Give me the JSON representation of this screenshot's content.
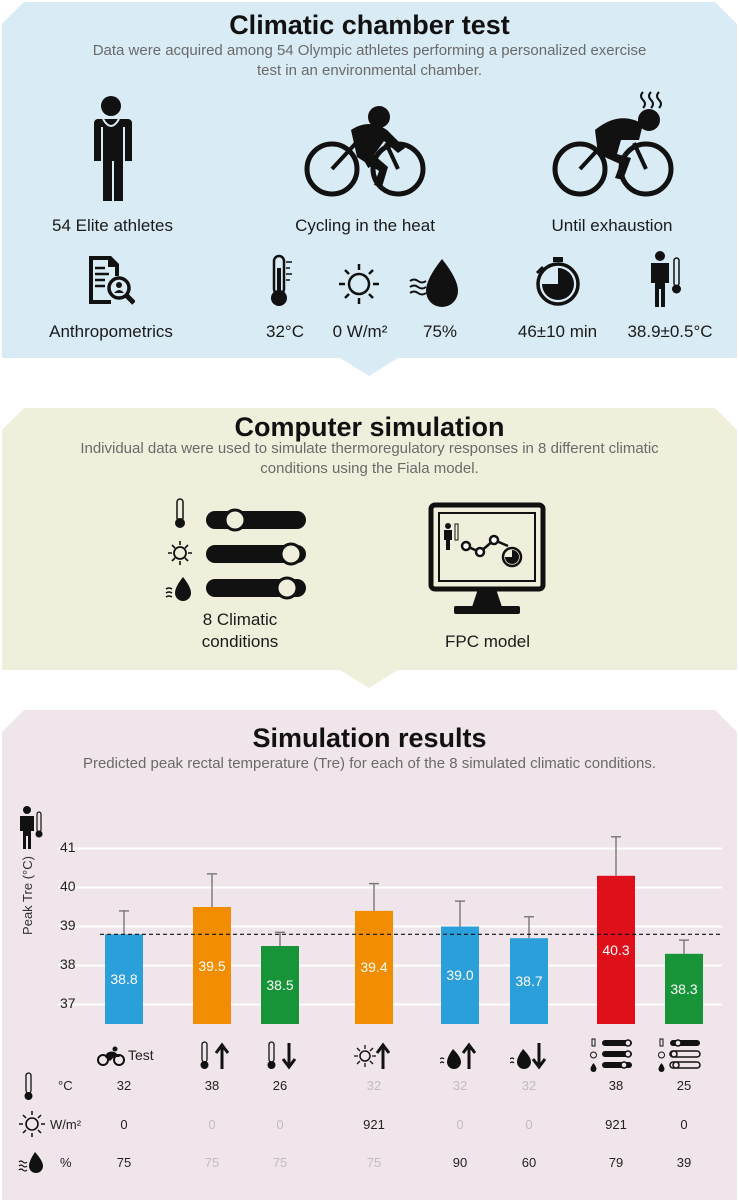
{
  "panel1": {
    "title": "Climatic chamber test",
    "subtitle": "Data were acquired among 54 Olympic athletes performing a personalized exercise test in an environmental chamber.",
    "items": [
      {
        "label": "54 Elite athletes",
        "icon": "athlete-icon"
      },
      {
        "label": "Cycling in the heat",
        "icon": "cyclist-icon"
      },
      {
        "label": "Until exhaustion",
        "icon": "exhausted-cyclist-icon"
      }
    ],
    "anthropometrics": "Anthropometrics",
    "conditions": {
      "temperature": "32°C",
      "radiation": "0 W/m²",
      "humidity": "75%",
      "duration": "46±10 min",
      "core_temp": "38.9±0.5°C"
    }
  },
  "panel2": {
    "title": "Computer simulation",
    "subtitle": "Individual data were used to simulate thermoregulatory responses in 8 different climatic conditions using the Fiala model.",
    "left_label_1": "8 Climatic",
    "left_label_2": "conditions",
    "right_label": "FPC model"
  },
  "panel3": {
    "title": "Simulation results",
    "subtitle": "Predicted peak rectal temperature (Tre) for each of the 8 simulated climatic conditions.",
    "test_label": "Test",
    "row_units": {
      "temperature": "°C",
      "radiation": "W/m²",
      "humidity": "%"
    }
  },
  "chart_data": {
    "type": "bar",
    "ylabel": "Peak Tre (°C)",
    "ylim": [
      36,
      41.5
    ],
    "yticks": [
      "37",
      "38",
      "39",
      "40",
      "41"
    ],
    "reference_line": 38.8,
    "colors": {
      "blue": "#2b9fd9",
      "orange": "#f28c00",
      "green": "#179438",
      "red": "#e0101a"
    },
    "bars": [
      {
        "value": 38.8,
        "label": "38.8",
        "error": 0.6,
        "color": "blue"
      },
      {
        "value": 39.5,
        "label": "39.5",
        "error": 0.85,
        "color": "orange"
      },
      {
        "value": 38.5,
        "label": "38.5",
        "error": 0.35,
        "color": "green"
      },
      {
        "value": 39.4,
        "label": "39.4",
        "error": 0.7,
        "color": "orange"
      },
      {
        "value": 39.0,
        "label": "39.0",
        "error": 0.65,
        "color": "blue"
      },
      {
        "value": 38.7,
        "label": "38.7",
        "error": 0.55,
        "color": "blue"
      },
      {
        "value": 40.3,
        "label": "40.3",
        "error": 1.0,
        "color": "red"
      },
      {
        "value": 38.3,
        "label": "38.3",
        "error": 0.35,
        "color": "green"
      }
    ],
    "table": {
      "temperature": [
        {
          "v": "32",
          "on": true
        },
        {
          "v": "38",
          "on": true
        },
        {
          "v": "26",
          "on": true
        },
        {
          "v": "32",
          "on": false
        },
        {
          "v": "32",
          "on": false
        },
        {
          "v": "32",
          "on": false
        },
        {
          "v": "38",
          "on": true
        },
        {
          "v": "25",
          "on": true
        }
      ],
      "radiation": [
        {
          "v": "0",
          "on": true
        },
        {
          "v": "0",
          "on": false
        },
        {
          "v": "0",
          "on": false
        },
        {
          "v": "921",
          "on": true
        },
        {
          "v": "0",
          "on": false
        },
        {
          "v": "0",
          "on": false
        },
        {
          "v": "921",
          "on": true
        },
        {
          "v": "0",
          "on": true
        }
      ],
      "humidity": [
        {
          "v": "75",
          "on": true
        },
        {
          "v": "75",
          "on": false
        },
        {
          "v": "75",
          "on": false
        },
        {
          "v": "75",
          "on": false
        },
        {
          "v": "90",
          "on": true
        },
        {
          "v": "60",
          "on": true
        },
        {
          "v": "79",
          "on": true
        },
        {
          "v": "39",
          "on": true
        }
      ]
    }
  }
}
